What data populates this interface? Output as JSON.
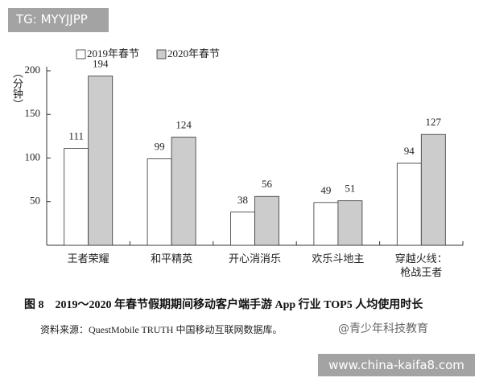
{
  "watermark": "TG: MYYJJPP",
  "chart_data": {
    "type": "bar",
    "y_label": "（分钟）",
    "categories": [
      "王者荣耀",
      "和平精英",
      "开心消消乐",
      "欢乐斗地主",
      "穿越火线：\n枪战王者"
    ],
    "series": [
      {
        "name": "2019年春节",
        "color": "#ffffff",
        "values": [
          111,
          99,
          38,
          49,
          94
        ]
      },
      {
        "name": "2020年春节",
        "color": "#cccccc",
        "values": [
          194,
          124,
          56,
          51,
          127
        ]
      }
    ],
    "ylim": [
      0,
      200
    ],
    "yticks": [
      50,
      100,
      150,
      200
    ]
  },
  "caption": "图 8　2019～2020 年春节假期期间移动客户端手游 App 行业 TOP5 人均使用时长",
  "source": "资料来源：QuestMobile TRUTH 中国移动互联网数据库。",
  "overlay_watermarks": [
    "@青少年科技教育",
    "www.china-kaifa8.com"
  ]
}
